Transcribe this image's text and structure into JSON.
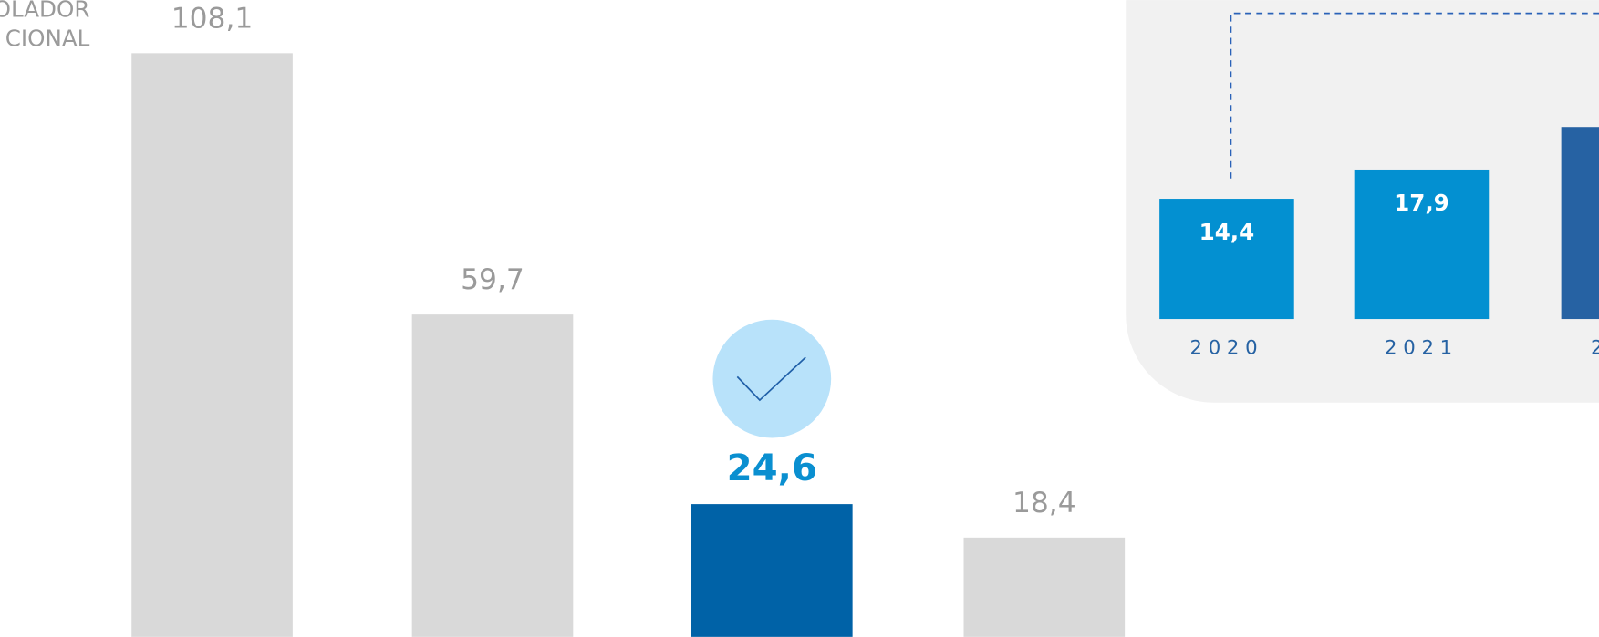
{
  "side_label": [
    "OLADOR",
    "CIONAL"
  ],
  "chart_data": [
    {
      "type": "bar",
      "values": [
        108.1,
        59.7,
        24.6,
        18.4
      ],
      "value_labels": [
        "108,1",
        "59,7",
        "24,6",
        "18,4"
      ],
      "colors": [
        "#d9d9d9",
        "#d9d9d9",
        "#0062a7",
        "#d9d9d9"
      ],
      "highlight": 2
    },
    {
      "type": "bar",
      "categories": [
        "2020",
        "2021",
        "2"
      ],
      "values": [
        14.4,
        17.9,
        23
      ],
      "value_labels": [
        "14,4",
        "17,9",
        null
      ],
      "colors": [
        "#0390d1",
        "#0390d1",
        "#2662a3"
      ]
    }
  ]
}
